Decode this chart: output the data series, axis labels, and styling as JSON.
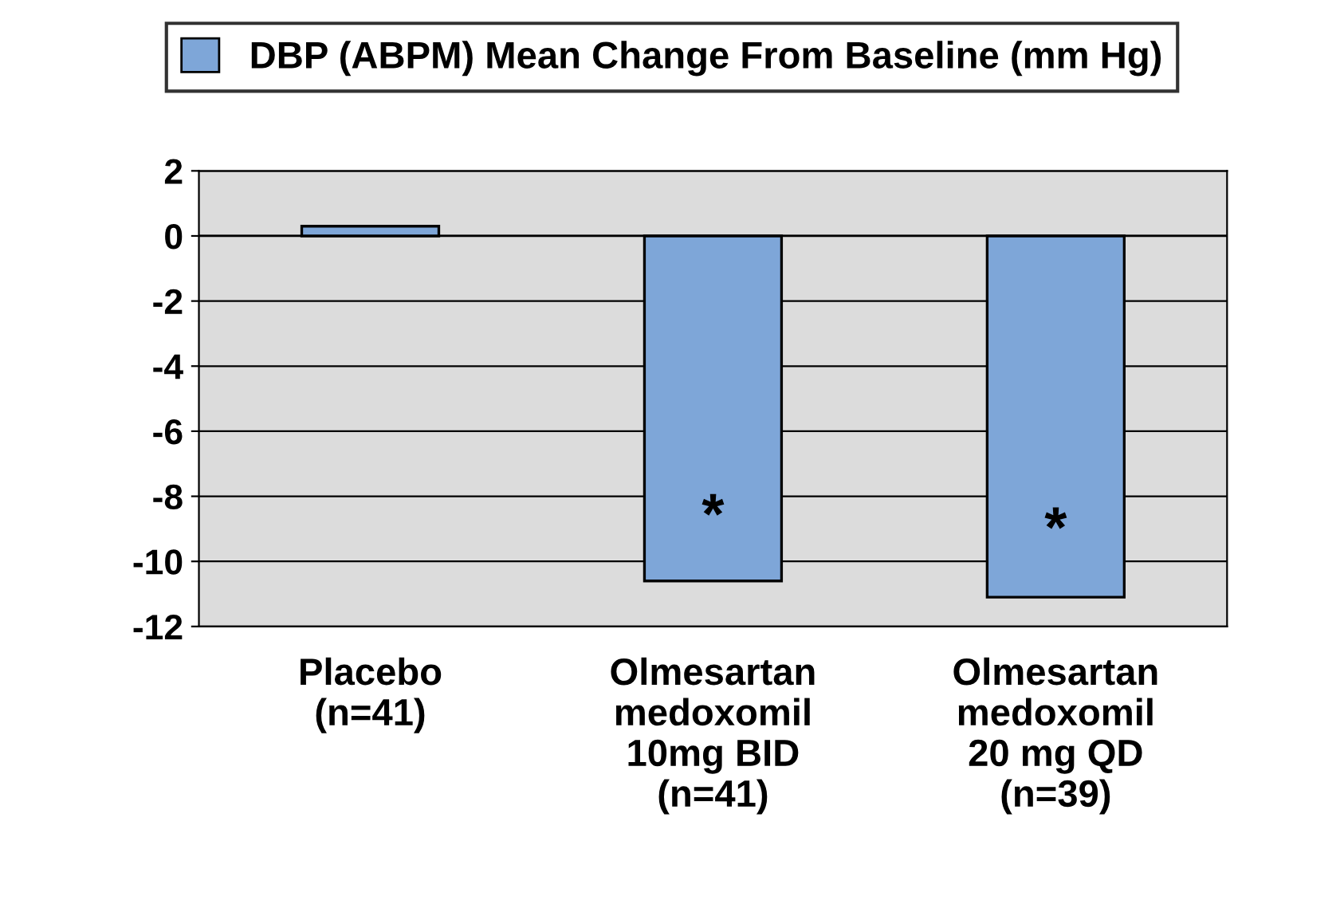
{
  "chart_data": {
    "type": "bar",
    "categories": [
      "Placebo\n(n=41)",
      "Olmesartan\nmedoxomil\n10mg BID\n(n=41)",
      "Olmesartan\nmedoxomil\n20 mg QD\n(n=39)"
    ],
    "series": [
      {
        "name": "DBP (ABPM) Mean Change From Baseline (mm Hg)",
        "color": "#7ea6d8",
        "values": [
          0.3,
          -10.6,
          -11.1
        ]
      }
    ],
    "ylim": [
      -12,
      2
    ],
    "yticks": [
      -12,
      -10,
      -8,
      -6,
      -4,
      -2,
      0,
      2
    ],
    "grid": "y",
    "legend": "top",
    "annotations": [
      "*",
      "*"
    ]
  }
}
